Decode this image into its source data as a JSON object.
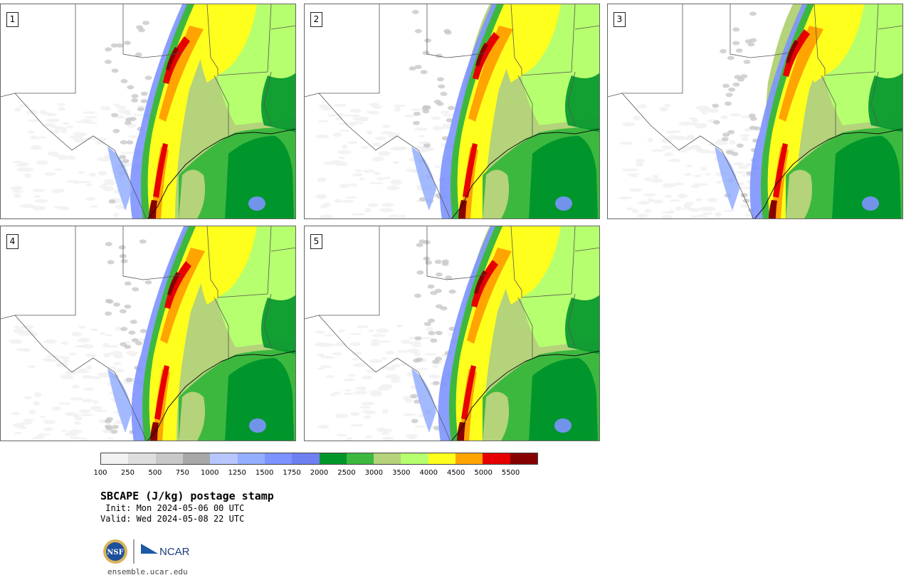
{
  "panels": [
    {
      "label": "1"
    },
    {
      "label": "2"
    },
    {
      "label": "3"
    },
    {
      "label": "4"
    },
    {
      "label": "5"
    }
  ],
  "colorbar": {
    "colors": [
      "#f2f2f2",
      "#dedede",
      "#c8c8c8",
      "#a8a8a8",
      "#b7c6ff",
      "#94aeff",
      "#7d93ff",
      "#6f80f2",
      "#00962b",
      "#3db83f",
      "#b4d37a",
      "#b6ff6e",
      "#ffff1e",
      "#ffa400",
      "#e60000",
      "#870000"
    ],
    "tick_labels": [
      "100",
      "250",
      "500",
      "750",
      "1000",
      "1250",
      "1500",
      "1750",
      "2000",
      "2500",
      "3000",
      "3500",
      "4000",
      "4500",
      "5000",
      "5500"
    ]
  },
  "title": "SBCAPE (J/kg) postage stamp",
  "init": " Init: Mon 2024-05-06 00 UTC",
  "valid": "Valid: Wed 2024-05-08 22 UTC",
  "logos": {
    "left": "NSF",
    "right": "NCAR"
  },
  "site": "ensemble.ucar.edu"
}
